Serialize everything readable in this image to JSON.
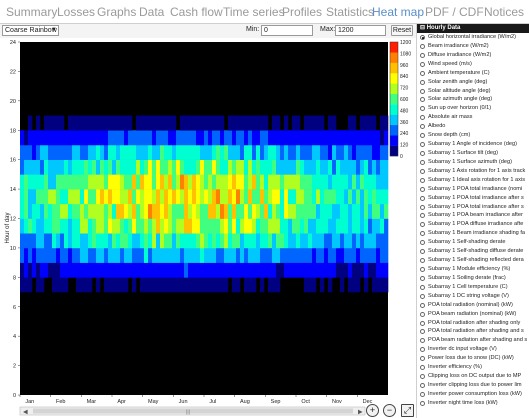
{
  "tabs": [
    {
      "label": "Summary",
      "active": false
    },
    {
      "label": "Losses",
      "active": false
    },
    {
      "label": "Graphs",
      "active": false
    },
    {
      "label": "Data",
      "active": false
    },
    {
      "label": "Cash flow",
      "active": false
    },
    {
      "label": "Time series",
      "active": false
    },
    {
      "label": "Profiles",
      "active": false
    },
    {
      "label": "Statistics",
      "active": false
    },
    {
      "label": "Heat map",
      "active": true
    },
    {
      "label": "PDF / CDF",
      "active": false
    },
    {
      "label": "Notices",
      "active": false
    }
  ],
  "toolbar": {
    "colormap": "Coarse Rainbow",
    "min_label": "Min:",
    "min_value": "0",
    "max_label": "Max:",
    "max_value": "1200",
    "reset_label": "Reset"
  },
  "chart_data": {
    "type": "heatmap",
    "ylabel": "Hour of day",
    "xlabel": "",
    "x_ticks": [
      "Jan",
      "Feb",
      "Mar",
      "Apr",
      "May",
      "Jun",
      "Jul",
      "Aug",
      "Sep",
      "Oct",
      "Nov",
      "Dec"
    ],
    "y_ticks": [
      0,
      2,
      4,
      6,
      8,
      10,
      12,
      14,
      16,
      18,
      20,
      22,
      24
    ],
    "ylim": [
      0,
      24
    ],
    "colorbar_ticks": [
      0,
      120,
      240,
      360,
      480,
      600,
      720,
      840,
      960,
      1080,
      1200
    ],
    "colorbar_range": [
      0,
      1200
    ],
    "colors": [
      "#000080",
      "#0000ff",
      "#0064ff",
      "#00c8ff",
      "#00ffd0",
      "#40ff80",
      "#b0ff20",
      "#ffff00",
      "#ffc000",
      "#ff8000",
      "#ff2000"
    ],
    "background": "#000000",
    "mean_hourly_values": [
      0,
      0,
      0,
      0,
      0,
      0,
      0,
      40,
      150,
      320,
      480,
      620,
      700,
      720,
      660,
      540,
      380,
      200,
      60,
      0,
      0,
      0,
      0,
      0
    ]
  },
  "side_panel": {
    "header": "Hourly Data",
    "items": [
      {
        "label": "Global horizontal irradiance (W/m2)",
        "selected": true
      },
      {
        "label": "Beam irradiance (W/m2)",
        "selected": false
      },
      {
        "label": "Diffuse irradiance (W/m2)",
        "selected": false
      },
      {
        "label": "Wind speed (m/s)",
        "selected": false
      },
      {
        "label": "Ambient temperature (C)",
        "selected": false
      },
      {
        "label": "Solar zenith angle (deg)",
        "selected": false
      },
      {
        "label": "Solar altitude angle (deg)",
        "selected": false
      },
      {
        "label": "Solar azimuth angle (deg)",
        "selected": false
      },
      {
        "label": "Sun up over horizon (0/1)",
        "selected": false
      },
      {
        "label": "Absolute air mass",
        "selected": false
      },
      {
        "label": "Albedo",
        "selected": false
      },
      {
        "label": "Snow depth (cm)",
        "selected": false
      },
      {
        "label": "Subarray 1 Angle of incidence (deg)",
        "selected": false
      },
      {
        "label": "Subarray 1 Surface tilt (deg)",
        "selected": false
      },
      {
        "label": "Subarray 1 Surface azimuth (deg)",
        "selected": false
      },
      {
        "label": "Subarray 1 Axis rotation for 1 axis track",
        "selected": false
      },
      {
        "label": "Subarray 1 Ideal axis rotation for 1 axis",
        "selected": false
      },
      {
        "label": "Subarray 1 POA total irradiance (nomi",
        "selected": false
      },
      {
        "label": "Subarray 1 POA total irradiance after s",
        "selected": false
      },
      {
        "label": "Subarray 1 POA total irradiance after s",
        "selected": false
      },
      {
        "label": "Subarray 1 POA beam irradiance after",
        "selected": false
      },
      {
        "label": "Subarray 1 POA diffuse irradiance afte",
        "selected": false
      },
      {
        "label": "Subarray 1 Beam irradiance shading fa",
        "selected": false
      },
      {
        "label": "Subarray 1 Self-shading derate",
        "selected": false
      },
      {
        "label": "Subarray 1 Self-shading diffuse derate",
        "selected": false
      },
      {
        "label": "Subarray 1 Self-shading reflected dera",
        "selected": false
      },
      {
        "label": "Subarray 1 Module efficiency (%)",
        "selected": false
      },
      {
        "label": "Subarray 1 Soiling derate (frac)",
        "selected": false
      },
      {
        "label": "Subarray 1 Cell temperature (C)",
        "selected": false
      },
      {
        "label": "Subarray 1 DC string voltage (V)",
        "selected": false
      },
      {
        "label": "POA total radiation (nominal) (kW)",
        "selected": false
      },
      {
        "label": "POA beam radiation (nominal) (kW)",
        "selected": false
      },
      {
        "label": "POA total radiation after shading only",
        "selected": false
      },
      {
        "label": "POA total radiation after shading and s",
        "selected": false
      },
      {
        "label": "POA beam radiation after shading and s",
        "selected": false
      },
      {
        "label": "Inverter dc input voltage (V)",
        "selected": false
      },
      {
        "label": "Power loss due to snow (DC) (kW)",
        "selected": false
      },
      {
        "label": "Inverter efficiency (%)",
        "selected": false
      },
      {
        "label": "Clipping loss on DC output due to MP",
        "selected": false
      },
      {
        "label": "Inverter clipping loss due to power lim",
        "selected": false
      },
      {
        "label": "Inverter power consumption loss (kW)",
        "selected": false
      },
      {
        "label": "Inverter night time loss (kW)",
        "selected": false
      }
    ]
  },
  "icons": {
    "zoom_in": "zoom-in-icon",
    "zoom_out": "zoom-out-icon",
    "zoom_fit": "zoom-fit-icon"
  }
}
